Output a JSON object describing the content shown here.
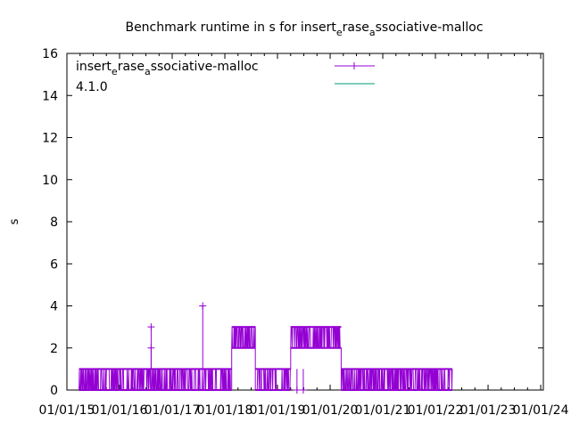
{
  "chart_data": {
    "type": "line",
    "title": "Benchmark runtime in s for insert_erase_associative-malloc",
    "title_parts": [
      "Benchmark runtime in s for insert",
      "e",
      "rase",
      "a",
      "ssociative-malloc"
    ],
    "xlabel": "",
    "ylabel": "s",
    "ylim": [
      0,
      16
    ],
    "yticks": [
      0,
      2,
      4,
      6,
      8,
      10,
      12,
      14,
      16
    ],
    "xlim_years": [
      2015.0,
      2024.05
    ],
    "xticks": [
      {
        "year": 2015,
        "label": "01/01/15"
      },
      {
        "year": 2016,
        "label": "01/01/16"
      },
      {
        "year": 2017,
        "label": "01/01/17"
      },
      {
        "year": 2018,
        "label": "01/01/18"
      },
      {
        "year": 2019,
        "label": "01/01/19"
      },
      {
        "year": 2020,
        "label": "01/01/20"
      },
      {
        "year": 2021,
        "label": "01/01/21"
      },
      {
        "year": 2022,
        "label": "01/01/22"
      },
      {
        "year": 2023,
        "label": "01/01/23"
      },
      {
        "year": 2024,
        "label": "01/01/24"
      }
    ],
    "grid": false,
    "legend_position": "top-left",
    "series": [
      {
        "name": "insert_erase_associative-malloc",
        "name_parts": [
          "insert",
          "e",
          "rase",
          "a",
          "ssociative-malloc"
        ],
        "color": "#9400d3",
        "marker": "+",
        "segments": [
          {
            "from": 2015.23,
            "to": 2018.13,
            "low": 0,
            "high": 1
          },
          {
            "from": 2018.13,
            "to": 2018.58,
            "low": 2,
            "high": 3
          },
          {
            "from": 2018.58,
            "to": 2019.25,
            "low": 0,
            "high": 1
          },
          {
            "from": 2019.25,
            "to": 2020.21,
            "low": 2,
            "high": 3
          },
          {
            "from": 2020.21,
            "to": 2022.32,
            "low": 0,
            "high": 1
          }
        ],
        "outliers": [
          {
            "x": 2016.6,
            "y": 3
          },
          {
            "x": 2016.6,
            "y": 2
          },
          {
            "x": 2017.58,
            "y": 4
          },
          {
            "x": 2019.37,
            "y": 0
          },
          {
            "x": 2019.49,
            "y": 0
          }
        ]
      },
      {
        "name": "4.1.0",
        "color": "#009e73",
        "values": []
      }
    ]
  }
}
